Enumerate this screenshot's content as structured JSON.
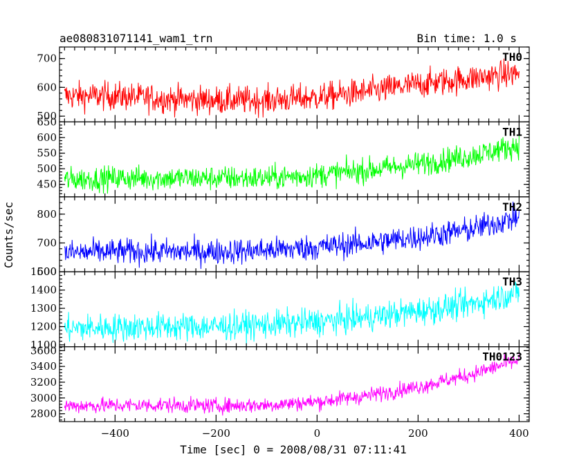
{
  "header": {
    "title": "ae080831071141_wam1_trn",
    "bin_time": "Bin time: 1.0 s"
  },
  "axes": {
    "xlabel": "Time [sec] 0 = 2008/08/31 07:11:41",
    "ylabel": "Counts/sec"
  },
  "chart_data": {
    "type": "line",
    "title": "ae080831071141_wam1_trn",
    "xlabel": "Time [sec] 0 = 2008/08/31 07:11:41",
    "ylabel": "Counts/sec",
    "xlim": [
      -510,
      420
    ],
    "xticks": [
      -400,
      -200,
      0,
      200,
      400
    ],
    "panels": [
      {
        "name": "TH0",
        "color": "#ff0000",
        "ylim": [
          480,
          740
        ],
        "yticks": [
          500,
          600,
          700
        ],
        "x": [
          -500,
          -400,
          -300,
          -200,
          -100,
          0,
          100,
          200,
          300,
          400
        ],
        "y": [
          570,
          570,
          560,
          555,
          555,
          565,
          585,
          610,
          630,
          650
        ],
        "noise": 35
      },
      {
        "name": "TH1",
        "color": "#00ff00",
        "ylim": [
          410,
          650
        ],
        "yticks": [
          450,
          500,
          550,
          600,
          650
        ],
        "x": [
          -500,
          -400,
          -300,
          -200,
          -100,
          0,
          100,
          200,
          300,
          400
        ],
        "y": [
          465,
          470,
          470,
          470,
          470,
          480,
          495,
          515,
          540,
          575
        ],
        "noise": 28
      },
      {
        "name": "TH2",
        "color": "#0000ff",
        "ylim": [
          600,
          860
        ],
        "yticks": [
          600,
          700,
          800
        ],
        "x": [
          -500,
          -400,
          -300,
          -200,
          -100,
          0,
          100,
          200,
          300,
          400
        ],
        "y": [
          665,
          670,
          670,
          670,
          675,
          685,
          700,
          720,
          745,
          790
        ],
        "noise": 32
      },
      {
        "name": "TH3",
        "color": "#00ffff",
        "ylim": [
          1090,
          1500
        ],
        "yticks": [
          1100,
          1200,
          1300,
          1400,
          1500
        ],
        "x": [
          -500,
          -400,
          -300,
          -200,
          -100,
          0,
          100,
          200,
          300,
          400
        ],
        "y": [
          1190,
          1195,
          1200,
          1200,
          1210,
          1225,
          1250,
          1285,
          1320,
          1390
        ],
        "noise": 55
      },
      {
        "name": "TH0123",
        "color": "#ff00ff",
        "ylim": [
          2700,
          3650
        ],
        "yticks": [
          2800,
          3000,
          3200,
          3400,
          3600
        ],
        "x": [
          -500,
          -400,
          -300,
          -200,
          -100,
          0,
          100,
          200,
          300,
          400
        ],
        "y": [
          2900,
          2905,
          2910,
          2900,
          2910,
          2950,
          3030,
          3140,
          3290,
          3480
        ],
        "noise": 70
      }
    ]
  }
}
